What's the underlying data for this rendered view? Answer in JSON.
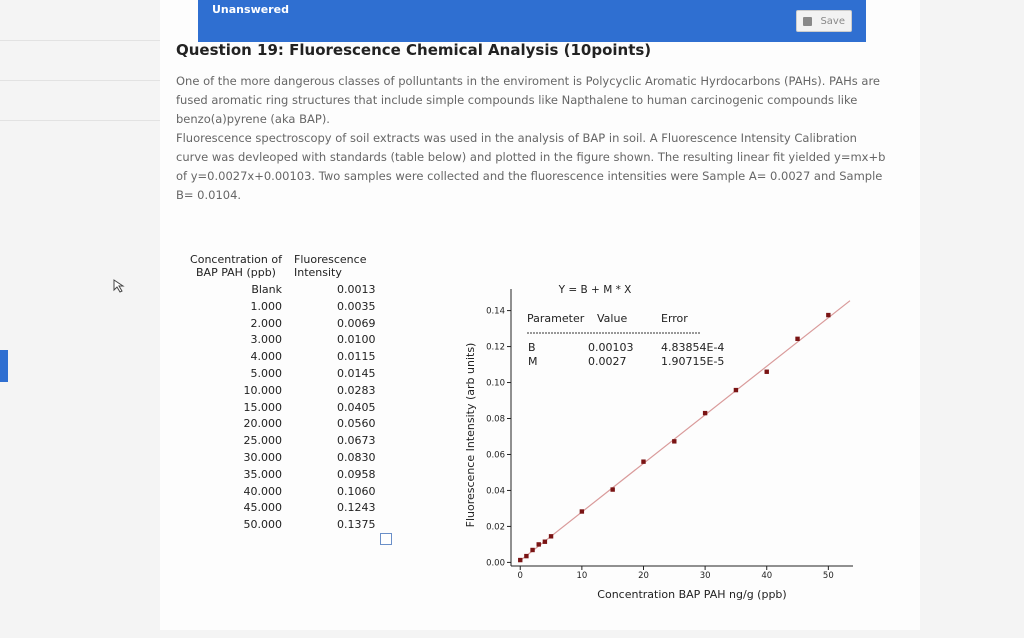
{
  "header": {
    "status": "Unanswered",
    "save": "Save"
  },
  "question": {
    "title": "Question 19: Fluorescence Chemical Analysis (10points)",
    "paragraphs": [
      "One of the more dangerous classes of polluntants in the enviroment is Polycyclic Aromatic Hyrdocarbons (PAHs). PAHs are fused aromatic ring structures that include simple compounds like Napthalene to human carcinogenic compounds like benzo(a)pyrene (aka BAP).",
      "Fluorescence spectroscopy of soil extracts was used in the analysis of BAP in soil. A Fluorescence Intensity Calibration curve was devleoped with standards (table below) and plotted in the figure shown. The resulting linear fit yielded y=mx+b of y=0.0027x+0.00103. Two samples were collected and the fluorescence intensities were Sample A= 0.0027 and Sample B= 0.0104."
    ]
  },
  "table": {
    "header": [
      "Concentration of BAP PAH (ppb)",
      "Fluorescence Intensity"
    ],
    "rows": [
      [
        "Blank",
        "0.0013"
      ],
      [
        "1.000",
        "0.0035"
      ],
      [
        "2.000",
        "0.0069"
      ],
      [
        "3.000",
        "0.0100"
      ],
      [
        "4.000",
        "0.0115"
      ],
      [
        "5.000",
        "0.0145"
      ],
      [
        "10.000",
        "0.0283"
      ],
      [
        "15.000",
        "0.0405"
      ],
      [
        "20.000",
        "0.0560"
      ],
      [
        "25.000",
        "0.0673"
      ],
      [
        "30.000",
        "0.0830"
      ],
      [
        "35.000",
        "0.0958"
      ],
      [
        "40.000",
        "0.1060"
      ],
      [
        "45.000",
        "0.1243"
      ],
      [
        "50.000",
        "0.1375"
      ]
    ]
  },
  "chart_data": {
    "type": "scatter",
    "x_label": "Concentration BAP PAH ng/g (ppb)",
    "y_label": "Fluorescence Intensity (arb units)",
    "x": [
      0,
      1,
      2,
      3,
      4,
      5,
      10,
      15,
      20,
      25,
      30,
      35,
      40,
      45,
      50
    ],
    "values": [
      0.0013,
      0.0035,
      0.0069,
      0.01,
      0.0115,
      0.0145,
      0.0283,
      0.0405,
      0.056,
      0.0673,
      0.083,
      0.0958,
      0.106,
      0.1243,
      0.1375
    ],
    "color": "#7a1414",
    "fit_color": "#d99a9a",
    "xlim": [
      -1.5,
      54
    ],
    "ylim": [
      -0.002,
      0.152
    ],
    "xticks": [
      0,
      10,
      20,
      30,
      40,
      50
    ],
    "yticks": [
      {
        "value": 0,
        "label": "0.00"
      },
      {
        "value": 0.02,
        "label": "0.02"
      },
      {
        "value": 0.04,
        "label": "0.04"
      },
      {
        "value": 0.06,
        "label": "0.06"
      },
      {
        "value": 0.08,
        "label": "0.08"
      },
      {
        "value": 0.1,
        "label": "0.10"
      },
      {
        "value": 0.12,
        "label": "0.12"
      },
      {
        "value": 0.14,
        "label": "0.14"
      }
    ],
    "fit_table": {
      "title": "Y = B + M * X",
      "header": [
        "Parameter",
        "Value",
        "Error"
      ],
      "rows": [
        {
          "name": "B",
          "value": 0.00103,
          "error": "4.83854E-4"
        },
        {
          "name": "M",
          "value": 0.0027,
          "error": "1.90715E-5"
        }
      ]
    }
  }
}
